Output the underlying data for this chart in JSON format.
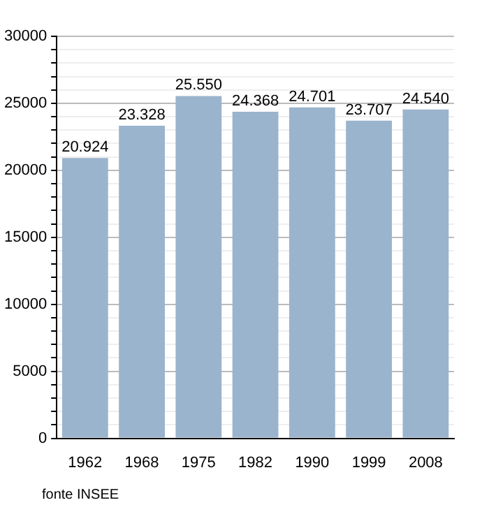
{
  "chart_data": {
    "type": "bar",
    "categories": [
      "1962",
      "1968",
      "1975",
      "1982",
      "1990",
      "1999",
      "2008"
    ],
    "values": [
      20924,
      23328,
      25550,
      24368,
      24701,
      23707,
      24540
    ],
    "value_labels": [
      "20.924",
      "23.328",
      "25.550",
      "24.368",
      "24.701",
      "23.707",
      "24.540"
    ],
    "color": "#9bb4cd",
    "ylim": [
      0,
      30000
    ],
    "yticks": [
      0,
      {
        "value": 1000,
        "label": null
      },
      {
        "value": 2000,
        "label": null
      },
      {
        "value": 3000,
        "label": null
      },
      {
        "value": 4000,
        "label": null
      },
      5000,
      {
        "value": 6000,
        "label": null
      },
      {
        "value": 7000,
        "label": null
      },
      {
        "value": 8000,
        "label": null
      },
      {
        "value": 9000,
        "label": null
      },
      10000,
      {
        "value": 11000,
        "label": null
      },
      {
        "value": 12000,
        "label": null
      },
      {
        "value": 13000,
        "label": null
      },
      {
        "value": 14000,
        "label": null
      },
      15000,
      {
        "value": 16000,
        "label": null
      },
      {
        "value": 17000,
        "label": null
      },
      {
        "value": 18000,
        "label": null
      },
      {
        "value": 19000,
        "label": null
      },
      20000,
      {
        "value": 21000,
        "label": null
      },
      {
        "value": 22000,
        "label": null
      },
      {
        "value": 23000,
        "label": null
      },
      {
        "value": 24000,
        "label": null
      },
      25000,
      {
        "value": 26000,
        "label": null
      },
      {
        "value": 27000,
        "label": null
      },
      {
        "value": 28000,
        "label": null
      },
      {
        "value": 29000,
        "label": null
      },
      30000
    ],
    "grid": "y",
    "annotations": [
      "fonte INSEE"
    ]
  }
}
